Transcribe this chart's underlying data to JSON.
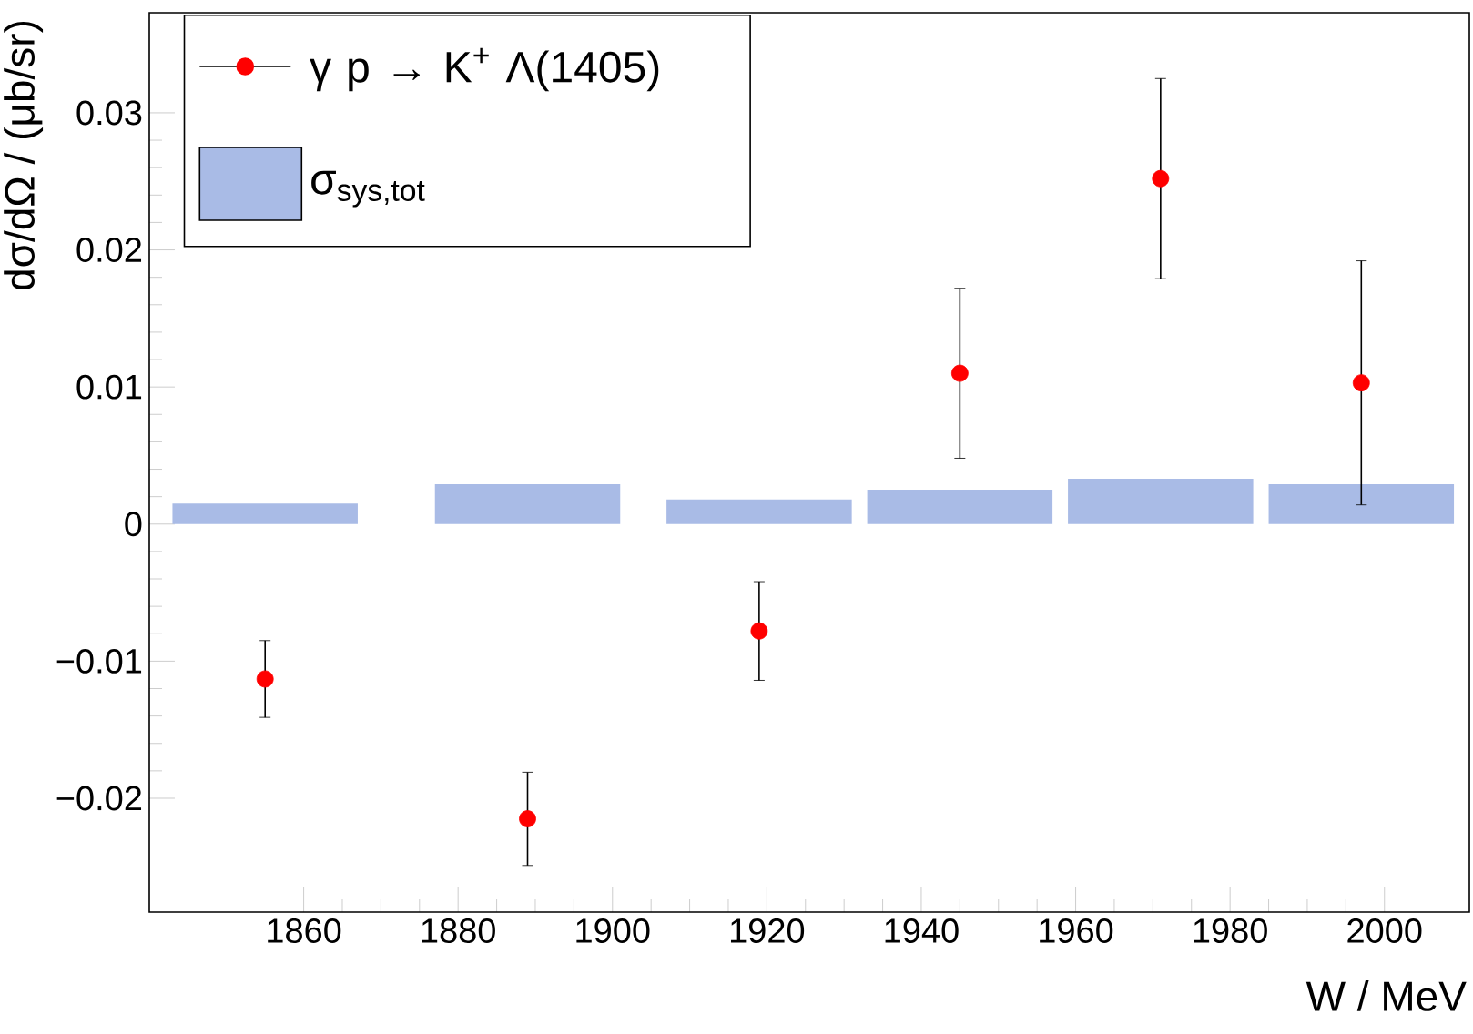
{
  "chart_data": {
    "type": "scatter",
    "xlabel": "W / MeV",
    "ylabel": "dσ/dΩ / (μb/sr)",
    "xlim": [
      1840,
      2011
    ],
    "ylim": [
      -0.0283,
      0.0373
    ],
    "xticks": [
      1860,
      1880,
      1900,
      1920,
      1940,
      1960,
      1980,
      2000
    ],
    "yticks": [
      {
        "value": -0.02,
        "label": "−0.02"
      },
      {
        "value": -0.01,
        "label": "−0.01"
      },
      0,
      0.01,
      0.02,
      0.03
    ],
    "legend": "top left",
    "marker": "circle",
    "series": [
      {
        "name": "γ p → K$^{+}$ Λ(1405)",
        "color": "#ff0000",
        "x": [
          1855,
          1889,
          1919,
          1945,
          1971,
          1997
        ],
        "values": [
          -0.0113,
          -0.0215,
          -0.0078,
          0.011,
          0.0252,
          0.0103
        ],
        "errors": [
          0.0028,
          0.0034,
          0.0036,
          0.0062,
          0.0073,
          0.0089
        ]
      },
      {
        "name": "σ$_{sys,tot}$",
        "type": "bar",
        "color": "#a9bbe6",
        "x": [
          1855,
          1889,
          1919,
          1945,
          1971,
          1997
        ],
        "values": [
          0.0015,
          0.0029,
          0.0018,
          0.0025,
          0.0033,
          0.0029
        ]
      }
    ]
  }
}
